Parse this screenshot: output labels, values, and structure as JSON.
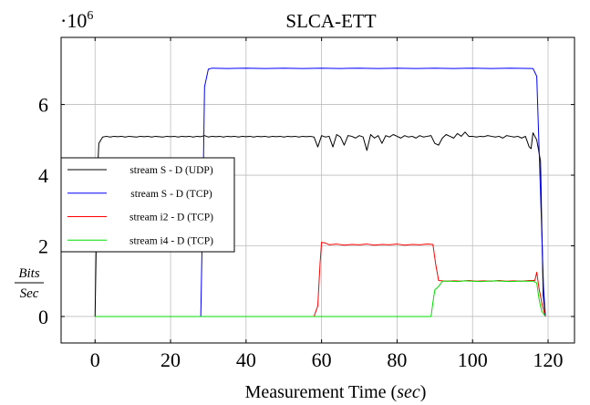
{
  "chart_data": {
    "type": "line",
    "title": "SLCA-ETT",
    "xlabel_main": "Measurement Time (",
    "xlabel_unit": "sec",
    "xlabel_close": ")",
    "ylabel_num": "Bits",
    "ylabel_den": "Sec",
    "y_multiplier_prefix": "·10",
    "y_multiplier_exp": "6",
    "xlim": [
      -9,
      127
    ],
    "ylim": [
      -0.75,
      7.9
    ],
    "xticks": [
      0,
      20,
      40,
      60,
      80,
      100,
      120
    ],
    "yticks": [
      0,
      2,
      4,
      6
    ],
    "grid": true,
    "legend_position": "left-middle",
    "series": [
      {
        "name": "stream S - D (UDP)",
        "color": "#000000",
        "points": [
          [
            0,
            0
          ],
          [
            0.6,
            4.0
          ],
          [
            1,
            4.9
          ],
          [
            2,
            5.08
          ],
          [
            3,
            5.1
          ],
          [
            4,
            5.08
          ],
          [
            5,
            5.1
          ],
          [
            6,
            5.09
          ],
          [
            7,
            5.1
          ],
          [
            8,
            5.08
          ],
          [
            9,
            5.1
          ],
          [
            10,
            5.09
          ],
          [
            11,
            5.08
          ],
          [
            12,
            5.1
          ],
          [
            13,
            5.09
          ],
          [
            14,
            5.1
          ],
          [
            15,
            5.08
          ],
          [
            16,
            5.1
          ],
          [
            17,
            5.09
          ],
          [
            18,
            5.08
          ],
          [
            19,
            5.1
          ],
          [
            20,
            5.09
          ],
          [
            21,
            5.1
          ],
          [
            22,
            5.08
          ],
          [
            23,
            5.1
          ],
          [
            24,
            5.09
          ],
          [
            25,
            5.1
          ],
          [
            26,
            5.08
          ],
          [
            27,
            5.1
          ],
          [
            28,
            5.09
          ],
          [
            29,
            5.12
          ],
          [
            30,
            5.08
          ],
          [
            31,
            5.1
          ],
          [
            32,
            5.09
          ],
          [
            33,
            5.1
          ],
          [
            34,
            5.08
          ],
          [
            35,
            5.1
          ],
          [
            36,
            5.09
          ],
          [
            37,
            5.1
          ],
          [
            38,
            5.08
          ],
          [
            39,
            5.1
          ],
          [
            40,
            5.09
          ],
          [
            41,
            5.1
          ],
          [
            42,
            5.08
          ],
          [
            43,
            5.1
          ],
          [
            44,
            5.09
          ],
          [
            45,
            5.1
          ],
          [
            46,
            5.08
          ],
          [
            47,
            5.1
          ],
          [
            48,
            5.09
          ],
          [
            49,
            5.1
          ],
          [
            50,
            5.08
          ],
          [
            51,
            5.1
          ],
          [
            52,
            5.09
          ],
          [
            53,
            5.1
          ],
          [
            54,
            5.08
          ],
          [
            55,
            5.1
          ],
          [
            56,
            5.09
          ],
          [
            57,
            5.1
          ],
          [
            58,
            5.08
          ],
          [
            59,
            4.8
          ],
          [
            60,
            5.12
          ],
          [
            61,
            5.08
          ],
          [
            62,
            5.1
          ],
          [
            63,
            4.8
          ],
          [
            64,
            5.15
          ],
          [
            65,
            5.08
          ],
          [
            66,
            4.85
          ],
          [
            67,
            5.12
          ],
          [
            68,
            5.1
          ],
          [
            69,
            5.05
          ],
          [
            70,
            5.12
          ],
          [
            71,
            5.08
          ],
          [
            72,
            4.7
          ],
          [
            73,
            5.15
          ],
          [
            74,
            5.05
          ],
          [
            75,
            5.12
          ],
          [
            76,
            4.9
          ],
          [
            77,
            5.12
          ],
          [
            78,
            5.08
          ],
          [
            79,
            5.15
          ],
          [
            80,
            5.1
          ],
          [
            81,
            5.05
          ],
          [
            82,
            5.12
          ],
          [
            83,
            5.08
          ],
          [
            84,
            5.1
          ],
          [
            85,
            5.05
          ],
          [
            86,
            5.12
          ],
          [
            87,
            5.08
          ],
          [
            88,
            5.1
          ],
          [
            89,
            5.12
          ],
          [
            90,
            4.9
          ],
          [
            91,
            4.85
          ],
          [
            92,
            5.05
          ],
          [
            93,
            5.15
          ],
          [
            94,
            5.1
          ],
          [
            95,
            5.05
          ],
          [
            96,
            5.18
          ],
          [
            97,
            5.1
          ],
          [
            98,
            5.22
          ],
          [
            99,
            5.1
          ],
          [
            100,
            5.1
          ],
          [
            101,
            5.08
          ],
          [
            102,
            5.1
          ],
          [
            103,
            5.09
          ],
          [
            104,
            5.12
          ],
          [
            105,
            5.1
          ],
          [
            106,
            5.08
          ],
          [
            107,
            5.1
          ],
          [
            108,
            5.05
          ],
          [
            109,
            5.12
          ],
          [
            110,
            5.1
          ],
          [
            111,
            5.08
          ],
          [
            112,
            5.1
          ],
          [
            113,
            5.05
          ],
          [
            114,
            5.1
          ],
          [
            115,
            4.8
          ],
          [
            115.5,
            4.75
          ],
          [
            116,
            5.2
          ],
          [
            117,
            5.0
          ],
          [
            118,
            4.4
          ],
          [
            118.7,
            0.6
          ],
          [
            119.3,
            0
          ]
        ]
      },
      {
        "name": "stream S - D (TCP)",
        "color": "#0000ff",
        "points": [
          [
            0,
            0
          ],
          [
            10,
            0
          ],
          [
            20,
            0
          ],
          [
            28,
            0
          ],
          [
            28.6,
            3.5
          ],
          [
            29,
            6.5
          ],
          [
            30,
            7.0
          ],
          [
            31,
            7.03
          ],
          [
            35,
            7.02
          ],
          [
            40,
            7.03
          ],
          [
            45,
            7.02
          ],
          [
            50,
            7.03
          ],
          [
            55,
            7.02
          ],
          [
            60,
            7.03
          ],
          [
            65,
            7.02
          ],
          [
            70,
            7.03
          ],
          [
            75,
            7.02
          ],
          [
            80,
            7.03
          ],
          [
            85,
            7.02
          ],
          [
            90,
            7.03
          ],
          [
            95,
            7.02
          ],
          [
            100,
            7.03
          ],
          [
            105,
            7.02
          ],
          [
            110,
            7.03
          ],
          [
            116,
            7.02
          ],
          [
            117,
            6.8
          ],
          [
            118,
            3.5
          ],
          [
            118.8,
            0.8
          ],
          [
            119.3,
            0
          ]
        ]
      },
      {
        "name": "stream i2 - D (TCP)",
        "color": "#ff0000",
        "points": [
          [
            0,
            0
          ],
          [
            10,
            0
          ],
          [
            20,
            0
          ],
          [
            30,
            0
          ],
          [
            40,
            0
          ],
          [
            50,
            0
          ],
          [
            58,
            0
          ],
          [
            59,
            0.3
          ],
          [
            59.6,
            1.5
          ],
          [
            60,
            2.1
          ],
          [
            61,
            2.08
          ],
          [
            62,
            2.03
          ],
          [
            64,
            2.05
          ],
          [
            66,
            2.02
          ],
          [
            68,
            2.04
          ],
          [
            70,
            2.03
          ],
          [
            72,
            2.05
          ],
          [
            74,
            2.02
          ],
          [
            76,
            2.04
          ],
          [
            78,
            2.03
          ],
          [
            80,
            2.05
          ],
          [
            82,
            2.02
          ],
          [
            84,
            2.04
          ],
          [
            86,
            2.03
          ],
          [
            88,
            2.05
          ],
          [
            89.5,
            2.04
          ],
          [
            90.2,
            1.5
          ],
          [
            91,
            1.02
          ],
          [
            93,
            1.0
          ],
          [
            95,
            1.01
          ],
          [
            97,
            1.0
          ],
          [
            99,
            1.02
          ],
          [
            101,
            1.0
          ],
          [
            103,
            1.01
          ],
          [
            105,
            1.0
          ],
          [
            107,
            1.02
          ],
          [
            109,
            1.0
          ],
          [
            111,
            1.01
          ],
          [
            113,
            1.0
          ],
          [
            115,
            1.02
          ],
          [
            116.5,
            1.02
          ],
          [
            117,
            1.25
          ],
          [
            117.6,
            0.8
          ],
          [
            118.5,
            0.3
          ],
          [
            119.3,
            0
          ]
        ]
      },
      {
        "name": "stream i4 - D (TCP)",
        "color": "#00dd00",
        "points": [
          [
            0,
            0
          ],
          [
            10,
            0
          ],
          [
            20,
            0
          ],
          [
            30,
            0
          ],
          [
            40,
            0
          ],
          [
            50,
            0
          ],
          [
            60,
            0
          ],
          [
            70,
            0
          ],
          [
            80,
            0
          ],
          [
            89,
            0
          ],
          [
            89.5,
            0.4
          ],
          [
            90,
            0.75
          ],
          [
            91,
            0.85
          ],
          [
            92,
            1.0
          ],
          [
            94,
            1.0
          ],
          [
            96,
            0.99
          ],
          [
            98,
            1.01
          ],
          [
            100,
            1.0
          ],
          [
            102,
            0.99
          ],
          [
            104,
            1.0
          ],
          [
            106,
            1.01
          ],
          [
            108,
            1.0
          ],
          [
            110,
            0.99
          ],
          [
            112,
            1.0
          ],
          [
            114,
            1.0
          ],
          [
            116,
            1.0
          ],
          [
            117,
            0.95
          ],
          [
            117.6,
            0.5
          ],
          [
            118.3,
            0.15
          ],
          [
            119.3,
            0
          ]
        ]
      }
    ]
  }
}
